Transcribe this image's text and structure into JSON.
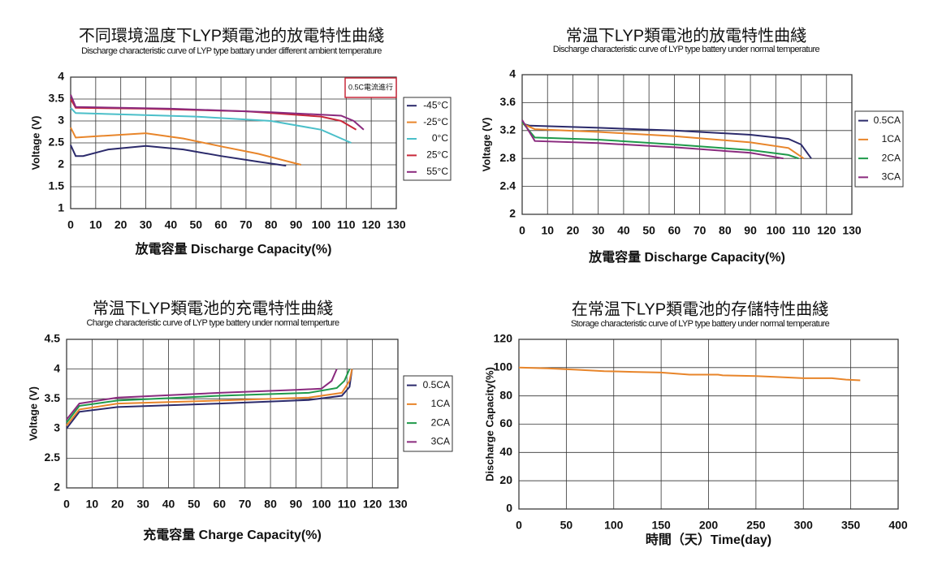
{
  "chart_data": [
    {
      "type": "line",
      "title": "不同環境溫度下LYP類電池的放電特性曲綫",
      "subtitle": "Discharge characteristic curve of LYP type battary under different ambient temperature",
      "x_label": "放電容量 Discharge Capacity(%)",
      "y_label": "Voltage (V)",
      "annotation": "0.5C電流進行",
      "xlim": [
        0,
        130
      ],
      "ylim": [
        1,
        4
      ],
      "xticks": [
        0,
        10,
        20,
        30,
        40,
        50,
        60,
        70,
        80,
        90,
        100,
        110,
        120,
        130
      ],
      "yticks": [
        1,
        1.5,
        2,
        2.5,
        3,
        3.5,
        4
      ],
      "grid": true,
      "legend": "right",
      "series": [
        {
          "name": "-45°C",
          "color": "#2b2a6b",
          "x": [
            0,
            2,
            5,
            15,
            30,
            45,
            60,
            75,
            86
          ],
          "values": [
            2.45,
            2.2,
            2.2,
            2.35,
            2.43,
            2.35,
            2.2,
            2.07,
            1.98
          ]
        },
        {
          "name": "-25°C",
          "color": "#e8852a",
          "x": [
            0,
            2,
            10,
            30,
            45,
            60,
            75,
            92
          ],
          "values": [
            2.85,
            2.62,
            2.65,
            2.72,
            2.6,
            2.42,
            2.25,
            2.0
          ]
        },
        {
          "name": "0°C",
          "color": "#4bbfc9",
          "x": [
            0,
            2,
            20,
            50,
            80,
            100,
            112
          ],
          "values": [
            3.3,
            3.18,
            3.15,
            3.1,
            3.0,
            2.8,
            2.5
          ]
        },
        {
          "name": "25°C",
          "color": "#c8283a",
          "x": [
            0,
            2,
            30,
            70,
            100,
            108,
            114
          ],
          "values": [
            3.5,
            3.3,
            3.28,
            3.22,
            3.1,
            3.0,
            2.8
          ]
        },
        {
          "name": "55°C",
          "color": "#8a2a7e",
          "x": [
            0,
            2,
            40,
            80,
            108,
            113,
            117
          ],
          "values": [
            3.6,
            3.32,
            3.28,
            3.2,
            3.12,
            3.0,
            2.8
          ]
        }
      ]
    },
    {
      "type": "line",
      "title": "常温下LYP類電池的放電特性曲綫",
      "subtitle": "Discharge characteristic curve of LYP  type battery under normal temperature",
      "x_label": "放電容量 Discharge Capacity(%)",
      "y_label": "Voltage (V)",
      "xlim": [
        0,
        130
      ],
      "ylim": [
        2,
        4
      ],
      "xticks": [
        0,
        10,
        20,
        30,
        40,
        50,
        60,
        70,
        80,
        90,
        100,
        110,
        120,
        130
      ],
      "yticks": [
        2,
        2.4,
        2.8,
        3.2,
        3.6,
        4
      ],
      "grid": true,
      "legend": "right",
      "series": [
        {
          "name": "0.5CA",
          "color": "#2b2a6b",
          "x": [
            0,
            3,
            30,
            60,
            90,
            105,
            110,
            114
          ],
          "values": [
            3.3,
            3.27,
            3.24,
            3.2,
            3.14,
            3.08,
            3.0,
            2.8
          ]
        },
        {
          "name": "1CA",
          "color": "#e8852a",
          "x": [
            0,
            5,
            30,
            60,
            90,
            105,
            111
          ],
          "values": [
            3.3,
            3.22,
            3.18,
            3.12,
            3.03,
            2.95,
            2.8
          ]
        },
        {
          "name": "2CA",
          "color": "#1e9a4a",
          "x": [
            0,
            5,
            30,
            60,
            90,
            105,
            109
          ],
          "values": [
            3.32,
            3.1,
            3.07,
            3.0,
            2.92,
            2.85,
            2.8
          ]
        },
        {
          "name": "3CA",
          "color": "#8a2a7e",
          "x": [
            0,
            5,
            30,
            60,
            90,
            103
          ],
          "values": [
            3.35,
            3.05,
            3.02,
            2.96,
            2.88,
            2.8
          ]
        }
      ]
    },
    {
      "type": "line",
      "title": "常温下LYP類電池的充電特性曲綫",
      "subtitle": "Charge characteristic curve of LYP type battery under normal temperture",
      "x_label": "充電容量 Charge Capacity(%)",
      "y_label": "Voltage (V)",
      "xlim": [
        0,
        130
      ],
      "ylim": [
        2,
        4.5
      ],
      "xticks": [
        0,
        10,
        20,
        30,
        40,
        50,
        60,
        70,
        80,
        90,
        100,
        110,
        120,
        130
      ],
      "yticks": [
        2,
        2.5,
        3,
        3.5,
        4,
        4.5
      ],
      "grid": true,
      "legend": "right",
      "series": [
        {
          "name": "0.5CA",
          "color": "#2b2a6b",
          "x": [
            0,
            5,
            20,
            60,
            95,
            108,
            111,
            112
          ],
          "values": [
            3.0,
            3.28,
            3.36,
            3.42,
            3.48,
            3.55,
            3.7,
            4.0
          ]
        },
        {
          "name": "1CA",
          "color": "#e8852a",
          "x": [
            0,
            5,
            20,
            60,
            95,
            108,
            111,
            112
          ],
          "values": [
            3.05,
            3.32,
            3.42,
            3.47,
            3.52,
            3.6,
            3.8,
            4.0
          ]
        },
        {
          "name": "2CA",
          "color": "#1e9a4a",
          "x": [
            0,
            5,
            20,
            60,
            95,
            106,
            109,
            111
          ],
          "values": [
            3.1,
            3.38,
            3.47,
            3.55,
            3.6,
            3.68,
            3.8,
            4.0
          ]
        },
        {
          "name": "3CA",
          "color": "#8a2a7e",
          "x": [
            0,
            5,
            20,
            60,
            90,
            100,
            104,
            106
          ],
          "values": [
            3.15,
            3.42,
            3.52,
            3.6,
            3.65,
            3.67,
            3.8,
            4.0
          ]
        }
      ]
    },
    {
      "type": "line",
      "title": "在常温下LYP類電池的存儲特性曲綫",
      "subtitle": "Storage characteristic curve of LYP type battery under normal temperature",
      "x_label": "時間（天）Time(day)",
      "y_label": "Discharge Capacity(%)",
      "xlim": [
        0,
        400
      ],
      "ylim": [
        0,
        120
      ],
      "xticks": [
        0,
        50,
        100,
        150,
        200,
        250,
        300,
        350,
        400
      ],
      "yticks": [
        0,
        20,
        40,
        60,
        80,
        100,
        120
      ],
      "grid": true,
      "series": [
        {
          "color": "#e8852a",
          "x": [
            0,
            30,
            60,
            90,
            120,
            150,
            180,
            210,
            215,
            250,
            270,
            300,
            330,
            345,
            360
          ],
          "values": [
            100,
            99.5,
            98.5,
            97.5,
            97,
            96.5,
            95,
            95,
            94.5,
            94,
            93.5,
            92.5,
            92.5,
            91.5,
            91
          ]
        }
      ]
    }
  ]
}
